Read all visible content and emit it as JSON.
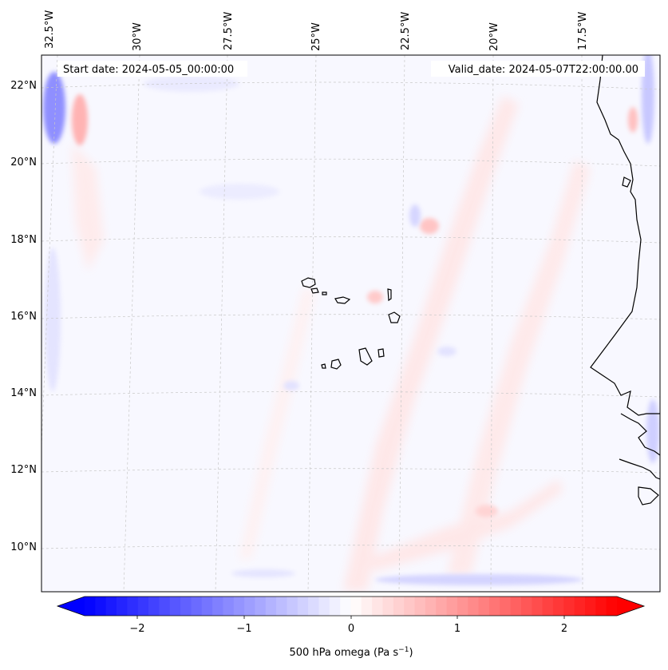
{
  "header": {
    "start_date": "Start date: 2024-05-05_00:00:00",
    "valid_date": "Valid_date: 2024-05-07T22:00:00.00"
  },
  "map": {
    "lon_labels": [
      "32.5°W",
      "30°W",
      "27.5°W",
      "25°W",
      "22.5°W",
      "20°W",
      "17.5°W"
    ],
    "lat_labels": [
      "22°N",
      "20°N",
      "18°N",
      "16°N",
      "14°N",
      "12°N",
      "10°N"
    ],
    "features": [
      "Cape Verde islands",
      "West African coastline"
    ]
  },
  "colorbar": {
    "ticks": [
      "−2",
      "−1",
      "0",
      "1",
      "2"
    ],
    "label": "500 hPa omega (Pa s",
    "label_sup": "−1",
    "label_end": ")",
    "range": [
      -2.6,
      2.6
    ],
    "colors": {
      "low": "#0000ff",
      "mid": "#ffffff",
      "high": "#ff0000"
    }
  }
}
